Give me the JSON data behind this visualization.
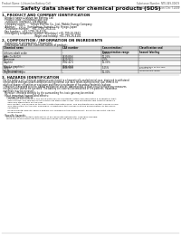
{
  "bg_color": "#ffffff",
  "header_top_left": "Product Name: Lithium Ion Battery Cell",
  "header_top_right": "Substance Number: NTE-049-00619\nEstablished / Revision: Dec.7.2009",
  "title": "Safety data sheet for chemical products (SDS)",
  "section1_title": "1. PRODUCT AND COMPANY IDENTIFICATION",
  "section1_lines": [
    "  · Product name: Lithium Ion Battery Cell",
    "  · Product code: Cylindrical-type cell",
    "    (IVR86500, IVR18650, IVR18650A)",
    "  · Company name:       Denyo Electric Co., Ltd., Mobile Energy Company",
    "  · Address:    225-1  Kamikoman, Sumoto-City, Hyogo, Japan",
    "  · Telephone number:   +81-(799)-26-4111",
    "  · Fax number:  +81-1799-26-4129",
    "  · Emergency telephone number (Weekday) +81-799-26-0662",
    "                                         (Night and holiday) +81-799-26-4101"
  ],
  "section2_title": "2. COMPOSITION / INFORMATION ON INGREDIENTS",
  "section2_sub": "  · Substance or preparation: Preparation",
  "section2_sub2": "  · Information about the chemical nature of product:",
  "table_headers": [
    "Chemical name",
    "CAS number",
    "Concentration /\nConcentration range",
    "Classification and\nhazard labeling"
  ],
  "table_rows": [
    [
      "Lithium cobalt oxide\n(LiMn-Co-Ni-O2)",
      "-",
      "30-60%",
      "-"
    ],
    [
      "Iron",
      "7439-89-6",
      "10-25%",
      "-"
    ],
    [
      "Aluminum",
      "7429-90-5",
      "2-5%",
      "-"
    ],
    [
      "Graphite\n(Hard-a graphite-)\n(Li-Mn graphite-)",
      "7782-42-5\n7782-44-0",
      "10-35%",
      "-"
    ],
    [
      "Copper",
      "7440-50-8",
      "5-15%",
      "Sensitization of the skin\ngroup N=2"
    ],
    [
      "Organic electrolyte",
      "-",
      "10-30%",
      "Inflammable liquid"
    ]
  ],
  "section3_title": "3. HAZARDS IDENTIFICATION",
  "section3_para": [
    "  For the battery cell, chemical substances are stored in a hermetically sealed metal case, designed to withstand",
    "  temperature changes-under-conditions during normal use. As a result, during normal use, there is no",
    "  physical danger of ignition or explosion and there is no danger of hazardous materials leakage.",
    "    However, if exposed to a fire, added mechanical shocks, decomposed, a short-circuit without any measures,",
    "  the gas inside cannot be operated. The battery cell case will be breached of fire-patterns. Hazardous",
    "  materials may be released.",
    "    Moreover, if heated strongly by the surrounding fire, toxic gas may be emitted."
  ],
  "section3_bullet1": "  · Most important hazard and effects:",
  "section3_human": "    Human health effects:",
  "section3_human_lines": [
    "      Inhalation: The release of the electrolyte has an anesthetic action and stimulates a respiratory tract.",
    "      Skin contact: The release of the electrolyte stimulates a skin. The electrolyte skin contact causes a",
    "      sore and stimulation on the skin.",
    "      Eye contact: The release of the electrolyte stimulates eyes. The electrolyte eye contact causes a sore",
    "      and stimulation on the eye. Especially, a substance that causes a strong inflammation of the eye is",
    "      contained.",
    "      Environmental effects: Since a battery cell remains in the environment, do not throw out it into the",
    "      environment."
  ],
  "section3_bullet2": "  · Specific hazards:",
  "section3_specific_lines": [
    "    If the electrolyte contacts with water, it will generate detrimental hydrogen fluoride.",
    "    Since the used electrolyte is inflammable liquid, do not bring close to fire."
  ]
}
